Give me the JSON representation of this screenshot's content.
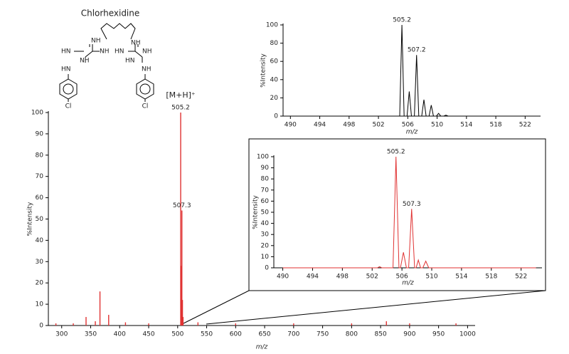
{
  "structure": {
    "title": "Chlorhexidine",
    "atoms": [
      "NH",
      "NH",
      "HN",
      "NH",
      "HN",
      "NH",
      "NH",
      "HN",
      "HN",
      "NH",
      "Cl",
      "Cl"
    ]
  },
  "chart_data": [
    {
      "type": "spectrum",
      "color": "#e03232",
      "xlabel": "m/z",
      "ylabel": "%Intensity",
      "xlim": [
        277,
        1013
      ],
      "ylim": [
        0,
        100
      ],
      "xticks": [
        300,
        350,
        400,
        450,
        500,
        550,
        600,
        650,
        700,
        750,
        800,
        850,
        900,
        950,
        1000
      ],
      "yticks": [
        0,
        10,
        20,
        30,
        40,
        50,
        60,
        70,
        80,
        90,
        100
      ],
      "series": [
        {
          "x": [
            290,
            320,
            342,
            358,
            366,
            381,
            410,
            450,
            505.2,
            506.2,
            507.3,
            508.3,
            509.3,
            535,
            600,
            700,
            800,
            860,
            900,
            980
          ],
          "values": [
            1,
            1,
            4,
            2,
            16,
            5,
            1.5,
            1,
            100,
            28,
            54,
            12,
            4,
            1.5,
            1,
            1,
            1,
            2,
            1,
            1
          ]
        }
      ],
      "peak_labels": [
        505.2,
        507.3
      ],
      "annotation": {
        "text": "[M+H]⁺",
        "x": 505.2
      }
    },
    {
      "type": "line",
      "color": "#000000",
      "xlabel": "m/z",
      "ylabel": "%Intensity",
      "xlim": [
        489,
        524.1
      ],
      "ylim": [
        0,
        100
      ],
      "xticks": [
        490,
        494,
        498,
        502,
        506,
        510,
        514,
        518,
        522
      ],
      "yticks": [
        0,
        20,
        40,
        60,
        80,
        100
      ],
      "series": [
        {
          "x": [
            490,
            504.9,
            505.2,
            505.5,
            505.9,
            506.2,
            506.5,
            506.9,
            507.2,
            507.5,
            507.9,
            508.2,
            508.5,
            508.9,
            509.2,
            509.5,
            509.9,
            510.2,
            510.5,
            510.9,
            511.2,
            511.5,
            524
          ],
          "values": [
            0,
            0,
            100,
            0,
            0,
            27,
            0,
            0,
            67,
            0,
            0,
            18,
            0,
            0,
            12,
            0,
            0,
            3,
            0,
            0,
            1,
            0,
            0
          ]
        }
      ],
      "peak_labels": [
        505.2,
        507.2
      ]
    },
    {
      "type": "line",
      "color": "#e03232",
      "xlabel": "m/z",
      "ylabel": "%Intensity",
      "xlim": [
        488.8,
        524.8
      ],
      "ylim": [
        0,
        100
      ],
      "xticks": [
        490,
        494,
        498,
        502,
        506,
        510,
        514,
        518,
        522
      ],
      "yticks": [
        0,
        10,
        20,
        30,
        40,
        50,
        60,
        70,
        80,
        90,
        100
      ],
      "series": [
        {
          "x": [
            490,
            502.7,
            503,
            503.3,
            504.8,
            505.2,
            505.6,
            505.8,
            506.2,
            506.6,
            506.9,
            507.3,
            507.7,
            507.9,
            508.2,
            508.5,
            508.8,
            509.2,
            509.6,
            524
          ],
          "values": [
            0,
            0,
            1,
            0,
            0,
            100,
            0,
            0,
            14,
            0,
            0,
            53,
            0,
            0,
            7,
            0,
            0,
            6,
            0,
            0
          ]
        }
      ],
      "peak_labels": [
        505.2,
        507.3
      ]
    }
  ]
}
